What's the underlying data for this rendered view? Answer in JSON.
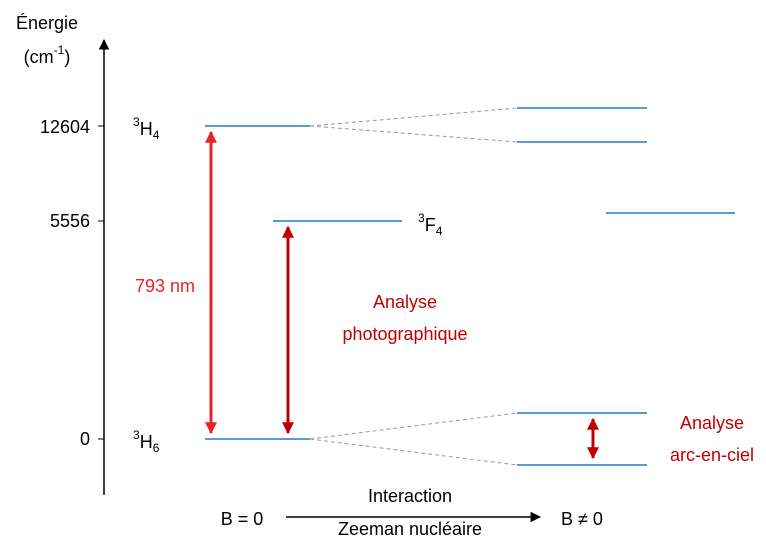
{
  "axis": {
    "title": "Énergie",
    "unit": {
      "open": "(cm",
      "sup": "-1",
      "close": ")"
    },
    "ticks": [
      12604,
      5556,
      0
    ]
  },
  "levels": [
    {
      "sup": "3",
      "symbol": "H",
      "sub": "4"
    },
    {
      "sup": "3",
      "symbol": "F",
      "sub": "4"
    },
    {
      "sup": "3",
      "symbol": "H",
      "sub": "6"
    }
  ],
  "annotations": {
    "transition": "793 nm",
    "photo": [
      "Analyse",
      "photographique"
    ],
    "rainbow": [
      "Analyse",
      "arc-en-ciel"
    ]
  },
  "field": {
    "left": "B = 0",
    "right": "B ≠ 0",
    "interaction": [
      "Interaction",
      "Zeeman nucléaire"
    ]
  }
}
